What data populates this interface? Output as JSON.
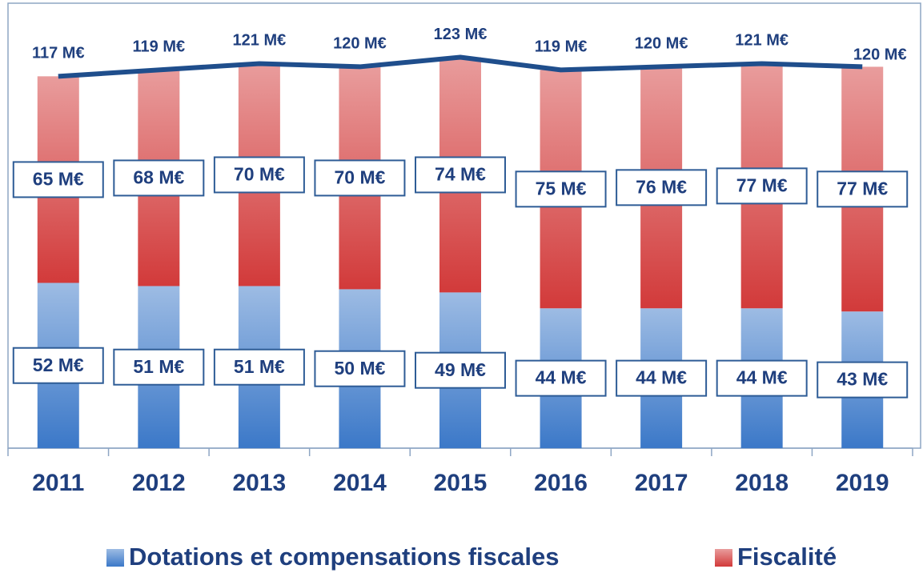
{
  "chart_data": {
    "type": "stacked-bar-line",
    "categories": [
      "2011",
      "2012",
      "2013",
      "2014",
      "2015",
      "2016",
      "2017",
      "2018",
      "2019"
    ],
    "series": [
      {
        "name": "Dotations et compensations fiscales",
        "color": "#3b78c8",
        "values": [
          52,
          51,
          51,
          50,
          49,
          44,
          44,
          44,
          43
        ],
        "value_labels": [
          "52 M€",
          "51 M€",
          "51 M€",
          "50 M€",
          "49 M€",
          "44 M€",
          "44 M€",
          "44 M€",
          "43 M€"
        ]
      },
      {
        "name": "Fiscalité",
        "color": "#d23a3a",
        "values": [
          65,
          68,
          70,
          70,
          74,
          75,
          76,
          77,
          77
        ],
        "value_labels": [
          "65 M€",
          "68 M€",
          "70 M€",
          "70 M€",
          "74 M€",
          "75 M€",
          "76 M€",
          "77 M€",
          "77 M€"
        ]
      }
    ],
    "line": {
      "color": "#1f4e8c",
      "values": [
        117,
        119,
        121,
        120,
        123,
        119,
        120,
        121,
        120
      ],
      "value_labels": [
        "117 M€",
        "119 M€",
        "121 M€",
        "120 M€",
        "123 M€",
        "119 M€",
        "120 M€",
        "121 M€",
        "120 M€"
      ]
    },
    "ylim": [
      0,
      140
    ]
  }
}
